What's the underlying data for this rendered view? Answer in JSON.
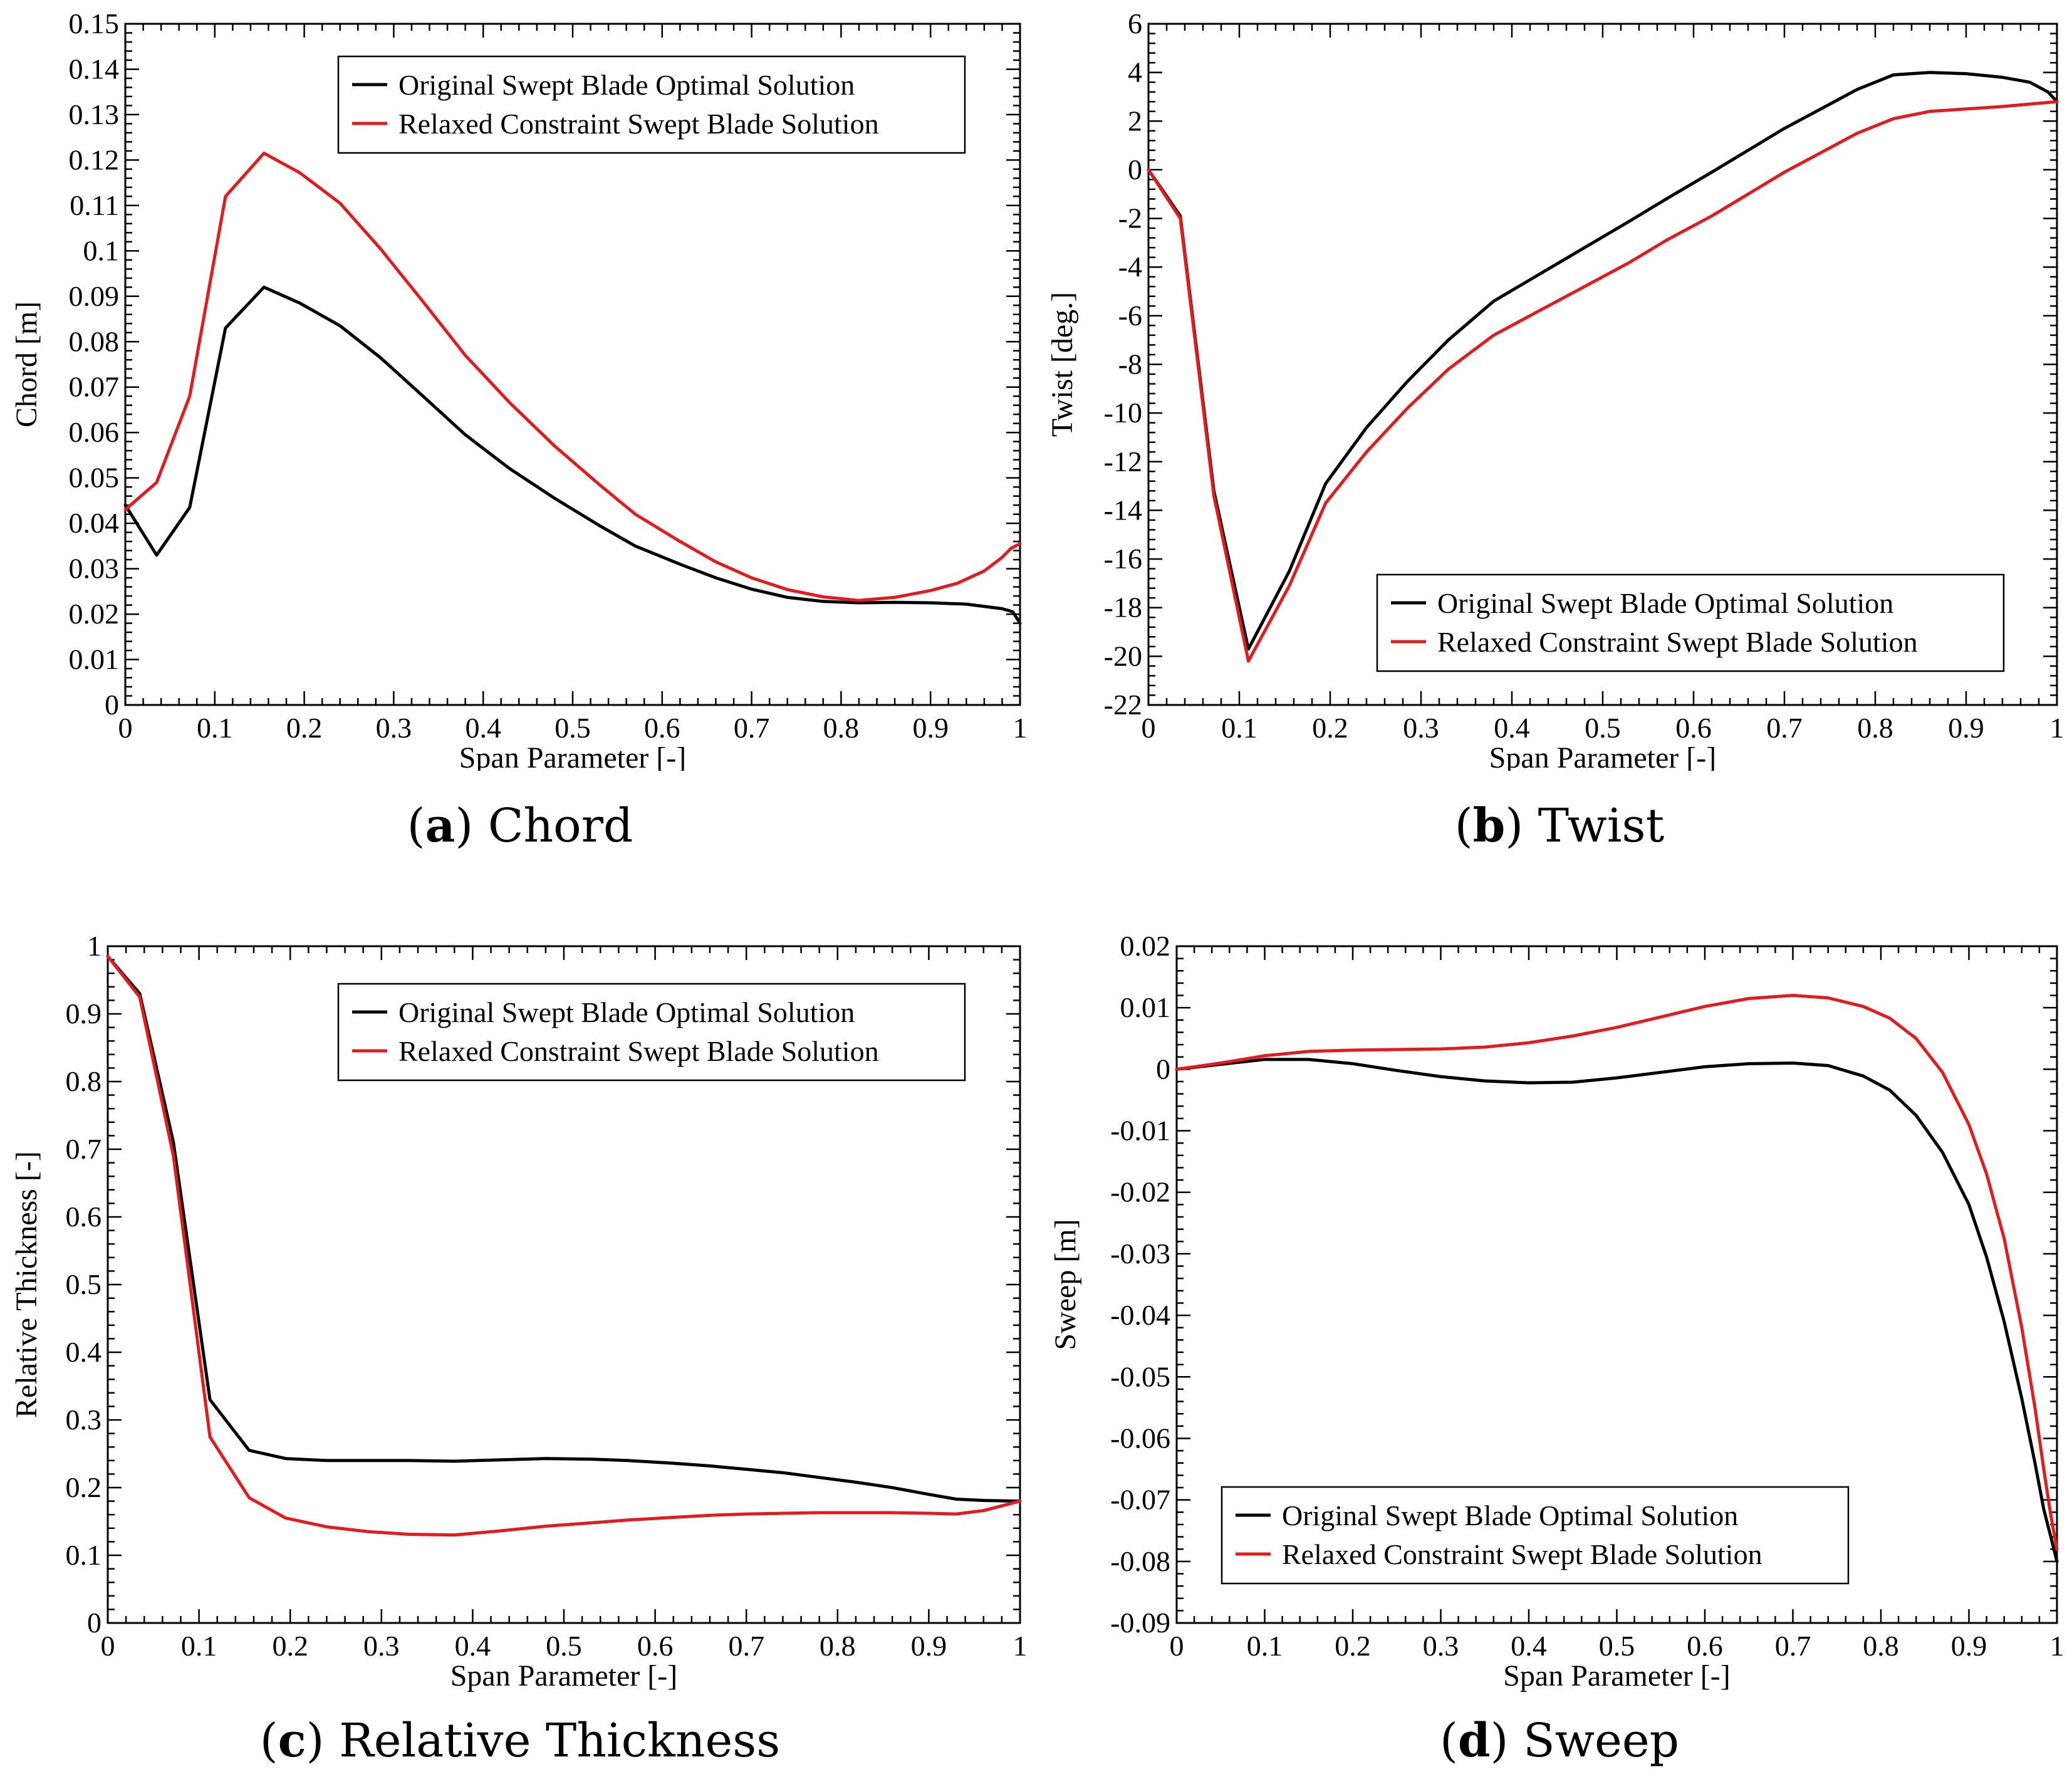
{
  "colors": {
    "original": "#000000",
    "relaxed": "#e41a1c",
    "axis": "#000000"
  },
  "chart_data": [
    {
      "type": "line",
      "id": "chord",
      "caption": {
        "letter": "a",
        "title": "Chord"
      },
      "xlabel": "Span Parameter [-]",
      "ylabel": "Chord [m]",
      "xlim": [
        0,
        1
      ],
      "ylim": [
        0,
        0.15
      ],
      "xticks": [
        0,
        0.1,
        0.2,
        0.3,
        0.4,
        0.5,
        0.6,
        0.7,
        0.8,
        0.9,
        1
      ],
      "xtick_labels": [
        "0",
        "0.1",
        "0.2",
        "0.3",
        "0.4",
        "0.5",
        "0.6",
        "0.7",
        "0.8",
        "0.9",
        "1"
      ],
      "yticks": [
        0,
        0.01,
        0.02,
        0.03,
        0.04,
        0.05,
        0.06,
        0.07,
        0.08,
        0.09,
        0.1,
        0.11,
        0.12,
        0.13,
        0.14,
        0.15
      ],
      "ytick_labels": [
        "0",
        "0.01",
        "0.02",
        "0.03",
        "0.04",
        "0.05",
        "0.06",
        "0.07",
        "0.08",
        "0.09",
        "0.1",
        "0.11",
        "0.12",
        "0.13",
        "0.14",
        "0.15"
      ],
      "legend": "top-right",
      "series": [
        {
          "name": "Original Swept Blade Optimal Solution",
          "color": "#000000",
          "x": [
            0,
            0.035,
            0.072,
            0.112,
            0.155,
            0.195,
            0.24,
            0.285,
            0.33,
            0.38,
            0.43,
            0.48,
            0.53,
            0.57,
            0.62,
            0.66,
            0.7,
            0.74,
            0.78,
            0.82,
            0.86,
            0.9,
            0.94,
            0.98,
            0.992,
            1.0
          ],
          "y": [
            0.044,
            0.033,
            0.0435,
            0.083,
            0.092,
            0.0885,
            0.0835,
            0.0765,
            0.0685,
            0.0595,
            0.052,
            0.0455,
            0.0395,
            0.035,
            0.031,
            0.028,
            0.0255,
            0.0237,
            0.0228,
            0.0225,
            0.0226,
            0.0225,
            0.0222,
            0.0212,
            0.0205,
            0.018
          ]
        },
        {
          "name": "Relaxed Constraint Swept Blade Solution",
          "color": "#e41a1c",
          "x": [
            0,
            0.035,
            0.072,
            0.112,
            0.155,
            0.195,
            0.24,
            0.285,
            0.33,
            0.38,
            0.43,
            0.48,
            0.53,
            0.57,
            0.62,
            0.66,
            0.7,
            0.74,
            0.78,
            0.82,
            0.86,
            0.9,
            0.93,
            0.96,
            0.98,
            0.99,
            1.0
          ],
          "y": [
            0.043,
            0.049,
            0.068,
            0.112,
            0.1215,
            0.1172,
            0.1105,
            0.1005,
            0.0895,
            0.077,
            0.0665,
            0.057,
            0.0485,
            0.042,
            0.036,
            0.0315,
            0.028,
            0.0254,
            0.0238,
            0.023,
            0.0237,
            0.0252,
            0.0268,
            0.0295,
            0.0325,
            0.0345,
            0.0355
          ]
        }
      ]
    },
    {
      "type": "line",
      "id": "twist",
      "caption": {
        "letter": "b",
        "title": "Twist"
      },
      "xlabel": "Span Parameter [-]",
      "ylabel": "Twist [deg.]",
      "xlim": [
        0,
        1
      ],
      "ylim": [
        -22,
        6
      ],
      "xticks": [
        0,
        0.1,
        0.2,
        0.3,
        0.4,
        0.5,
        0.6,
        0.7,
        0.8,
        0.9,
        1
      ],
      "xtick_labels": [
        "0",
        "0.1",
        "0.2",
        "0.3",
        "0.4",
        "0.5",
        "0.6",
        "0.7",
        "0.8",
        "0.9",
        "1"
      ],
      "yticks": [
        -22,
        -20,
        -18,
        -16,
        -14,
        -12,
        -10,
        -8,
        -6,
        -4,
        -2,
        0,
        2,
        4,
        6
      ],
      "ytick_labels": [
        "-22",
        "-20",
        "-18",
        "-16",
        "-14",
        "-12",
        "-10",
        "-8",
        "-6",
        "-4",
        "-2",
        "0",
        "2",
        "4",
        "6"
      ],
      "legend": "bottom-right",
      "series": [
        {
          "name": "Original Swept Blade Optimal Solution",
          "color": "#000000",
          "x": [
            0,
            0.035,
            0.072,
            0.11,
            0.155,
            0.195,
            0.24,
            0.285,
            0.33,
            0.38,
            0.43,
            0.48,
            0.53,
            0.57,
            0.62,
            0.66,
            0.7,
            0.74,
            0.78,
            0.82,
            0.86,
            0.9,
            0.94,
            0.97,
            0.99,
            1.0
          ],
          "y": [
            0,
            -1.9,
            -13.2,
            -19.7,
            -16.5,
            -12.9,
            -10.6,
            -8.7,
            -7.0,
            -5.4,
            -4.3,
            -3.2,
            -2.1,
            -1.2,
            -0.1,
            0.8,
            1.7,
            2.5,
            3.3,
            3.9,
            4.0,
            3.95,
            3.8,
            3.6,
            3.2,
            2.8
          ]
        },
        {
          "name": "Relaxed Constraint Swept Blade Solution",
          "color": "#e41a1c",
          "x": [
            0,
            0.035,
            0.072,
            0.11,
            0.155,
            0.195,
            0.24,
            0.285,
            0.33,
            0.38,
            0.43,
            0.48,
            0.53,
            0.57,
            0.62,
            0.66,
            0.7,
            0.74,
            0.78,
            0.82,
            0.86,
            0.9,
            0.94,
            0.97,
            1.0
          ],
          "y": [
            0,
            -2.0,
            -13.4,
            -20.2,
            -17.1,
            -13.7,
            -11.6,
            -9.8,
            -8.2,
            -6.8,
            -5.8,
            -4.8,
            -3.8,
            -2.9,
            -1.9,
            -1.0,
            -0.1,
            0.7,
            1.5,
            2.1,
            2.4,
            2.5,
            2.6,
            2.7,
            2.8
          ]
        }
      ]
    },
    {
      "type": "line",
      "id": "relative-thickness",
      "caption": {
        "letter": "c",
        "title": "Relative Thickness"
      },
      "xlabel": "Span Parameter [-]",
      "ylabel": "Relative Thickness [-]",
      "xlim": [
        0,
        1
      ],
      "ylim": [
        0,
        1
      ],
      "xticks": [
        0,
        0.1,
        0.2,
        0.3,
        0.4,
        0.5,
        0.6,
        0.7,
        0.8,
        0.9,
        1
      ],
      "xtick_labels": [
        "0",
        "0.1",
        "0.2",
        "0.3",
        "0.4",
        "0.5",
        "0.6",
        "0.7",
        "0.8",
        "0.9",
        "1"
      ],
      "yticks": [
        0,
        0.1,
        0.2,
        0.3,
        0.4,
        0.5,
        0.6,
        0.7,
        0.8,
        0.9,
        1
      ],
      "ytick_labels": [
        "0",
        "0.1",
        "0.2",
        "0.3",
        "0.4",
        "0.5",
        "0.6",
        "0.7",
        "0.8",
        "0.9",
        "1"
      ],
      "legend": "top-right",
      "series": [
        {
          "name": "Original Swept Blade Optimal Solution",
          "color": "#000000",
          "x": [
            0,
            0.035,
            0.072,
            0.112,
            0.155,
            0.195,
            0.24,
            0.285,
            0.33,
            0.38,
            0.43,
            0.48,
            0.53,
            0.57,
            0.62,
            0.66,
            0.7,
            0.74,
            0.78,
            0.82,
            0.86,
            0.9,
            0.93,
            0.96,
            1.0
          ],
          "y": [
            0.985,
            0.93,
            0.71,
            0.33,
            0.255,
            0.243,
            0.24,
            0.24,
            0.24,
            0.239,
            0.241,
            0.243,
            0.242,
            0.24,
            0.236,
            0.232,
            0.227,
            0.222,
            0.215,
            0.208,
            0.2,
            0.19,
            0.183,
            0.181,
            0.18
          ]
        },
        {
          "name": "Relaxed Constraint Swept Blade Solution",
          "color": "#e41a1c",
          "x": [
            0,
            0.035,
            0.072,
            0.112,
            0.155,
            0.195,
            0.24,
            0.285,
            0.33,
            0.38,
            0.43,
            0.48,
            0.53,
            0.57,
            0.62,
            0.66,
            0.7,
            0.74,
            0.78,
            0.82,
            0.86,
            0.9,
            0.93,
            0.96,
            1.0
          ],
          "y": [
            0.985,
            0.925,
            0.69,
            0.275,
            0.185,
            0.155,
            0.142,
            0.135,
            0.131,
            0.13,
            0.136,
            0.143,
            0.148,
            0.152,
            0.156,
            0.159,
            0.161,
            0.162,
            0.163,
            0.163,
            0.163,
            0.162,
            0.161,
            0.166,
            0.18
          ]
        }
      ]
    },
    {
      "type": "line",
      "id": "sweep",
      "caption": {
        "letter": "d",
        "title": "Sweep"
      },
      "xlabel": "Span Parameter [-]",
      "ylabel": "Sweep [m]",
      "xlim": [
        0,
        1
      ],
      "ylim": [
        -0.09,
        0.02
      ],
      "xticks": [
        0,
        0.1,
        0.2,
        0.3,
        0.4,
        0.5,
        0.6,
        0.7,
        0.8,
        0.9,
        1
      ],
      "xtick_labels": [
        "0",
        "0.1",
        "0.2",
        "0.3",
        "0.4",
        "0.5",
        "0.6",
        "0.7",
        "0.8",
        "0.9",
        "1"
      ],
      "yticks": [
        -0.09,
        -0.08,
        -0.07,
        -0.06,
        -0.05,
        -0.04,
        -0.03,
        -0.02,
        -0.01,
        0,
        0.01,
        0.02
      ],
      "ytick_labels": [
        "-0.09",
        "-0.08",
        "-0.07",
        "-0.06",
        "-0.05",
        "-0.04",
        "-0.03",
        "-0.02",
        "-0.01",
        "0",
        "0.01",
        "0.02"
      ],
      "legend": "bottom-left",
      "series": [
        {
          "name": "Original Swept Blade Optimal Solution",
          "color": "#000000",
          "x": [
            0,
            0.05,
            0.1,
            0.15,
            0.2,
            0.25,
            0.3,
            0.35,
            0.4,
            0.45,
            0.5,
            0.55,
            0.6,
            0.65,
            0.7,
            0.74,
            0.78,
            0.81,
            0.84,
            0.87,
            0.9,
            0.92,
            0.94,
            0.96,
            0.975,
            0.985,
            0.993,
            1.0
          ],
          "y": [
            0,
            0.0008,
            0.0016,
            0.0016,
            0.0009,
            -0.0002,
            -0.0012,
            -0.0019,
            -0.0022,
            -0.0021,
            -0.0014,
            -0.0005,
            0.0004,
            0.0009,
            0.001,
            0.0006,
            -0.0011,
            -0.0034,
            -0.0075,
            -0.0135,
            -0.022,
            -0.0305,
            -0.041,
            -0.0535,
            -0.064,
            -0.0715,
            -0.076,
            -0.08
          ]
        },
        {
          "name": "Relaxed Constraint Swept Blade Solution",
          "color": "#e41a1c",
          "x": [
            0,
            0.05,
            0.1,
            0.15,
            0.2,
            0.25,
            0.3,
            0.35,
            0.4,
            0.45,
            0.5,
            0.55,
            0.6,
            0.65,
            0.7,
            0.74,
            0.78,
            0.81,
            0.84,
            0.87,
            0.9,
            0.92,
            0.94,
            0.96,
            0.975,
            0.985,
            0.993,
            1.0
          ],
          "y": [
            0,
            0.001,
            0.0022,
            0.0029,
            0.0031,
            0.0032,
            0.0033,
            0.0036,
            0.0043,
            0.0054,
            0.0068,
            0.0085,
            0.0102,
            0.0115,
            0.012,
            0.0116,
            0.0102,
            0.0083,
            0.005,
            -0.0005,
            -0.009,
            -0.017,
            -0.0275,
            -0.042,
            -0.055,
            -0.065,
            -0.0725,
            -0.078
          ]
        }
      ]
    }
  ]
}
